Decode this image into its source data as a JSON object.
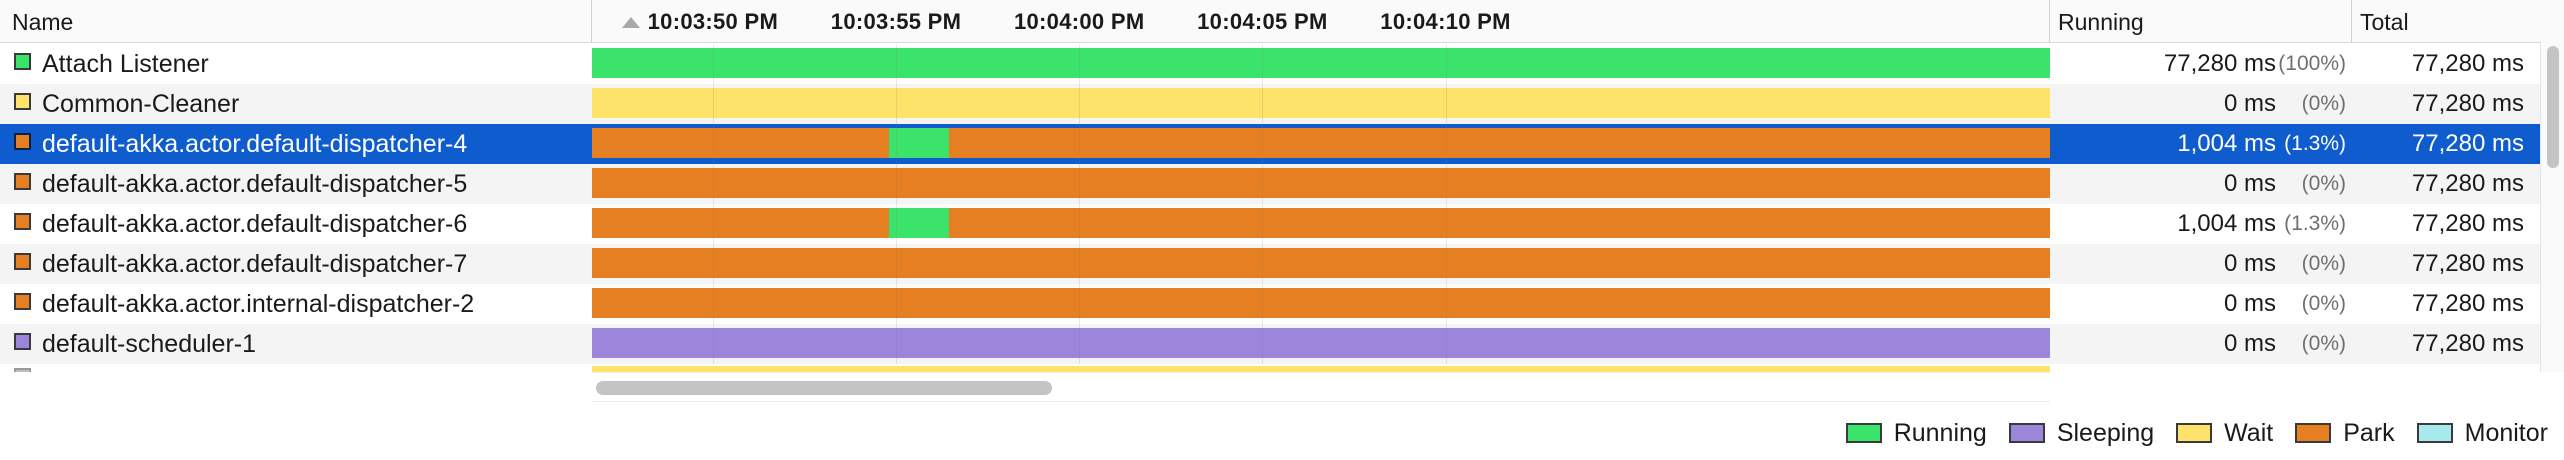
{
  "header": {
    "name_label": "Name",
    "running_label": "Running",
    "total_label": "Total",
    "ticks": [
      {
        "label": "10:03:50 PM",
        "seconds": 50
      },
      {
        "label": "10:03:55 PM",
        "seconds": 55
      },
      {
        "label": "10:04:00 PM",
        "seconds": 60
      },
      {
        "label": "10:04:05 PM",
        "seconds": 65
      },
      {
        "label": "10:04:10 PM",
        "seconds": 70
      }
    ]
  },
  "timeline": {
    "start_seconds": 46.7,
    "end_seconds": 86.5
  },
  "states": {
    "running": "#3ce36a",
    "sleeping": "#9b86dc",
    "wait": "#fde36a",
    "park": "#e67e22",
    "monitor": "#a7eaee"
  },
  "threads": [
    {
      "name": "Attach Listener",
      "state": "running",
      "running_ms": "77,280 ms",
      "running_pct": "(100%)",
      "total": "77,280 ms",
      "segments": [
        {
          "state": "running",
          "from": 0,
          "to": 1
        }
      ]
    },
    {
      "name": "Common-Cleaner",
      "state": "wait",
      "running_ms": "0 ms",
      "running_pct": "(0%)",
      "total": "77,280 ms",
      "segments": [
        {
          "state": "wait",
          "from": 0,
          "to": 1
        }
      ]
    },
    {
      "name": "default-akka.actor.default-dispatcher-4",
      "state": "park",
      "selected": true,
      "running_ms": "1,004 ms",
      "running_pct": "(1.3%)",
      "total": "77,280 ms",
      "segments": [
        {
          "state": "park",
          "from": 0,
          "to": 0.204
        },
        {
          "state": "running",
          "from": 0.204,
          "to": 0.245
        },
        {
          "state": "park",
          "from": 0.245,
          "to": 1
        }
      ]
    },
    {
      "name": "default-akka.actor.default-dispatcher-5",
      "state": "park",
      "running_ms": "0 ms",
      "running_pct": "(0%)",
      "total": "77,280 ms",
      "segments": [
        {
          "state": "park",
          "from": 0,
          "to": 1
        }
      ]
    },
    {
      "name": "default-akka.actor.default-dispatcher-6",
      "state": "park",
      "running_ms": "1,004 ms",
      "running_pct": "(1.3%)",
      "total": "77,280 ms",
      "segments": [
        {
          "state": "park",
          "from": 0,
          "to": 0.204
        },
        {
          "state": "running",
          "from": 0.204,
          "to": 0.245
        },
        {
          "state": "park",
          "from": 0.245,
          "to": 1
        }
      ]
    },
    {
      "name": "default-akka.actor.default-dispatcher-7",
      "state": "park",
      "running_ms": "0 ms",
      "running_pct": "(0%)",
      "total": "77,280 ms",
      "segments": [
        {
          "state": "park",
          "from": 0,
          "to": 1
        }
      ]
    },
    {
      "name": "default-akka.actor.internal-dispatcher-2",
      "state": "park",
      "running_ms": "0 ms",
      "running_pct": "(0%)",
      "total": "77,280 ms",
      "segments": [
        {
          "state": "park",
          "from": 0,
          "to": 1
        }
      ]
    },
    {
      "name": "default-scheduler-1",
      "state": "sleeping",
      "running_ms": "0 ms",
      "running_pct": "(0%)",
      "total": "77,280 ms",
      "segments": [
        {
          "state": "sleeping",
          "from": 0,
          "to": 1
        }
      ]
    }
  ],
  "legend": [
    {
      "label": "Running",
      "state": "running"
    },
    {
      "label": "Sleeping",
      "state": "sleeping"
    },
    {
      "label": "Wait",
      "state": "wait"
    },
    {
      "label": "Park",
      "state": "park"
    },
    {
      "label": "Monitor",
      "state": "monitor"
    }
  ]
}
